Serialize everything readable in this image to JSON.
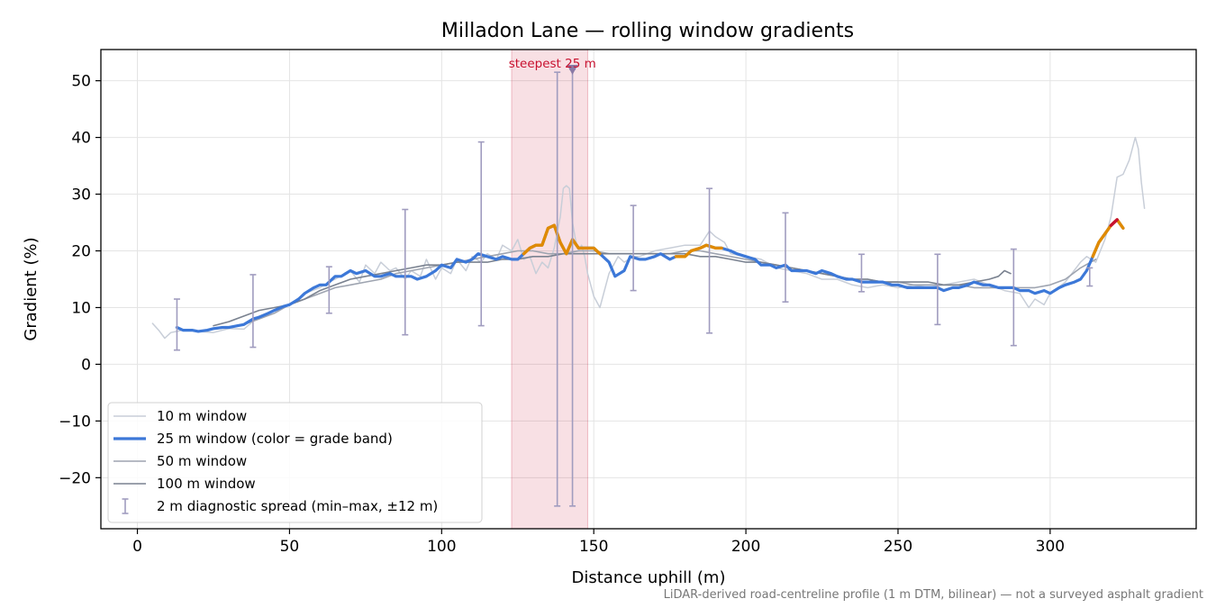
{
  "chart_data": {
    "type": "line",
    "title": "Milladon Lane — rolling window gradients",
    "xlabel": "Distance uphill (m)",
    "ylabel": "Gradient (%)",
    "xlim": [
      -12,
      348
    ],
    "ylim": [
      -29,
      55.5
    ],
    "xticks": [
      0,
      50,
      100,
      150,
      200,
      250,
      300
    ],
    "yticks": [
      -20,
      -10,
      0,
      10,
      20,
      30,
      40,
      50
    ],
    "xtick_labels": [
      "0",
      "50",
      "100",
      "150",
      "200",
      "250",
      "300"
    ],
    "ytick_labels": [
      "−20",
      "−10",
      "0",
      "10",
      "20",
      "30",
      "40",
      "50"
    ],
    "grid": true,
    "legend_position": "lower-left",
    "footnote": "LiDAR-derived road-centreline profile (1 m DTM, bilinear) — not a surveyed asphalt gradient",
    "steepest_band": {
      "x_start": 123,
      "x_end": 148,
      "marker_x": 143,
      "marker_y": 52,
      "label": "steepest 25 m"
    },
    "grade_band_colors": {
      "moderate": "#3c78d8",
      "steep": "#e08a00",
      "extreme": "#c8102e"
    },
    "legend": [
      {
        "label": "10 m window",
        "style": "thin-light"
      },
      {
        "label": "25 m window (color = grade band)",
        "style": "thick-blue"
      },
      {
        "label": "50 m window",
        "style": "medium-gray"
      },
      {
        "label": "100 m window",
        "style": "dark-gray"
      },
      {
        "label": "2 m diagnostic spread (min–max, ±12 m)",
        "style": "errorbar"
      }
    ],
    "series": [
      {
        "name": "10 m window",
        "color": "#c8ced8",
        "x": [
          5,
          7,
          9,
          11,
          13,
          16,
          20,
          25,
          30,
          35,
          40,
          45,
          50,
          55,
          60,
          63,
          65,
          68,
          70,
          73,
          75,
          78,
          80,
          83,
          85,
          88,
          90,
          93,
          95,
          98,
          100,
          103,
          105,
          108,
          110,
          113,
          115,
          118,
          120,
          123,
          125,
          127,
          129,
          131,
          133,
          135,
          137,
          139,
          140,
          141,
          142,
          143,
          144,
          145,
          146,
          147,
          148,
          150,
          152,
          155,
          158,
          160,
          163,
          165,
          170,
          175,
          180,
          185,
          188,
          190,
          193,
          195,
          200,
          205,
          210,
          215,
          220,
          225,
          230,
          235,
          240,
          245,
          250,
          255,
          260,
          265,
          270,
          275,
          280,
          285,
          290,
          293,
          295,
          298,
          300,
          305,
          310,
          312,
          315,
          318,
          320,
          322,
          324,
          326,
          328,
          329,
          330,
          331
        ],
        "y": [
          7.2,
          6,
          4.6,
          5.6,
          5.8,
          6.1,
          5.8,
          5.6,
          6.3,
          6.2,
          8.5,
          9.5,
          10.5,
          12.5,
          13.5,
          14.5,
          15,
          16,
          16.5,
          14.5,
          17.5,
          16,
          18,
          16.5,
          17,
          15,
          16.5,
          15.5,
          18.5,
          15,
          17,
          16,
          18.5,
          16.5,
          19,
          18,
          19.5,
          18.5,
          21,
          20,
          22,
          18.5,
          19,
          16,
          18,
          17,
          20.5,
          26,
          31,
          31.5,
          31,
          25,
          22,
          20,
          21,
          19,
          16,
          12,
          10,
          16,
          19,
          18,
          19,
          19,
          20,
          20.5,
          21,
          21,
          23.5,
          22.5,
          21.5,
          19.5,
          19,
          18.5,
          17,
          16.5,
          16,
          15,
          15,
          14,
          13.5,
          14,
          13.5,
          14,
          13.5,
          14,
          14.5,
          15,
          14,
          13,
          12.5,
          10,
          11.5,
          10.5,
          12.5,
          14.5,
          18,
          19,
          18,
          22,
          26,
          33,
          33.5,
          36,
          40,
          38,
          32,
          27.5
        ]
      },
      {
        "name": "25 m window (color = grade band)",
        "color": "#3c78d8",
        "x": [
          13,
          15,
          18,
          20,
          23,
          25,
          28,
          30,
          33,
          35,
          38,
          40,
          43,
          45,
          48,
          50,
          53,
          55,
          58,
          60,
          62,
          65,
          67,
          70,
          72,
          75,
          78,
          80,
          83,
          85,
          88,
          90,
          92,
          95,
          98,
          100,
          103,
          105,
          108,
          110,
          112,
          115,
          118,
          120,
          123,
          125,
          127,
          129,
          131,
          133,
          135,
          137,
          139,
          141,
          143,
          145,
          147,
          150,
          152,
          155,
          157,
          160,
          162,
          165,
          167,
          170,
          172,
          175,
          177,
          180,
          182,
          185,
          187,
          190,
          192,
          195,
          197,
          200,
          203,
          205,
          208,
          210,
          213,
          215,
          218,
          220,
          223,
          225,
          228,
          230,
          233,
          235,
          238,
          240,
          243,
          245,
          248,
          250,
          253,
          255,
          258,
          260,
          263,
          265,
          268,
          270,
          273,
          275,
          278,
          280,
          283,
          285,
          288,
          290,
          293,
          295,
          298,
          300,
          303,
          305,
          308,
          310,
          312,
          314,
          316,
          318,
          320,
          322,
          324
        ],
        "y": [
          6.5,
          6,
          6,
          5.8,
          6,
          6.3,
          6.5,
          6.5,
          6.8,
          7,
          8,
          8.3,
          9,
          9.5,
          10.2,
          10.5,
          11.5,
          12.5,
          13.5,
          14,
          14,
          15.5,
          15.5,
          16.5,
          16,
          16.5,
          15.5,
          15.5,
          16,
          15.5,
          15.5,
          15.5,
          15,
          15.5,
          16.5,
          17.5,
          17,
          18.5,
          18,
          18.5,
          19.5,
          19,
          18.5,
          19,
          18.5,
          18.5,
          19.5,
          20.5,
          21,
          21,
          24,
          24.5,
          21.5,
          19.5,
          22,
          20.5,
          20.5,
          20.5,
          19.5,
          18,
          15.5,
          16.5,
          19,
          18.5,
          18.5,
          19,
          19.5,
          18.5,
          19,
          19,
          20,
          20.5,
          21,
          20.5,
          20.5,
          20,
          19.5,
          19,
          18.5,
          17.5,
          17.5,
          17,
          17.5,
          16.5,
          16.5,
          16.5,
          16,
          16.5,
          16,
          15.5,
          15,
          15,
          14.5,
          14.5,
          14.5,
          14.5,
          14,
          14,
          13.5,
          13.5,
          13.5,
          13.5,
          13.5,
          13,
          13.5,
          13.5,
          14,
          14.5,
          14,
          14,
          13.5,
          13.5,
          13.5,
          13,
          13,
          12.5,
          13,
          12.5,
          13.5,
          14,
          14.5,
          15,
          16.5,
          19,
          21.5,
          23,
          24.5,
          25.5,
          24
        ]
      },
      {
        "name": "50 m window",
        "color": "#9ea4b0",
        "x": [
          25,
          30,
          35,
          40,
          45,
          50,
          55,
          60,
          65,
          70,
          75,
          80,
          85,
          90,
          95,
          100,
          105,
          110,
          115,
          120,
          125,
          130,
          135,
          140,
          145,
          150,
          155,
          160,
          165,
          170,
          175,
          180,
          185,
          190,
          195,
          200,
          205,
          210,
          215,
          220,
          225,
          230,
          235,
          240,
          245,
          250,
          255,
          260,
          265,
          270,
          275,
          280,
          285,
          290,
          295,
          300,
          305,
          310,
          315
        ],
        "y": [
          6.2,
          6.5,
          7,
          8,
          9,
          10.5,
          11.5,
          12.5,
          13.5,
          14,
          14.5,
          15,
          16,
          16.5,
          17,
          17.5,
          18,
          18.5,
          19,
          19.5,
          20,
          20,
          19.5,
          19.5,
          20,
          20,
          19.5,
          19.5,
          19.5,
          19.5,
          19.5,
          20,
          20,
          19.5,
          19,
          18.5,
          18,
          17.5,
          17,
          16.5,
          16,
          15.5,
          15,
          15,
          14.5,
          14.5,
          14,
          14,
          14,
          14,
          13.5,
          13.5,
          13.5,
          13.5,
          13.5,
          14,
          15,
          17,
          18.5
        ]
      },
      {
        "name": "100 m window",
        "color": "#7a8290",
        "x": [
          25,
          30,
          35,
          40,
          45,
          50,
          55,
          60,
          65,
          70,
          75,
          80,
          85,
          90,
          95,
          100,
          105,
          110,
          115,
          120,
          125,
          130,
          135,
          140,
          145,
          150,
          155,
          160,
          165,
          170,
          175,
          180,
          185,
          190,
          195,
          200,
          205,
          210,
          215,
          220,
          225,
          230,
          235,
          240,
          245,
          250,
          255,
          260,
          265,
          270,
          275,
          280,
          283,
          285,
          287
        ],
        "y": [
          6.8,
          7.5,
          8.5,
          9.5,
          10,
          10.5,
          11.5,
          13,
          14,
          15,
          15.5,
          16,
          16.5,
          17,
          17.5,
          17.5,
          18,
          18,
          18,
          18.5,
          18.5,
          19,
          19,
          19.5,
          19.5,
          19.5,
          19.5,
          19.5,
          19.5,
          19.5,
          19.5,
          19.5,
          19,
          19,
          18.5,
          18,
          18,
          17.5,
          17,
          16.5,
          16,
          15.5,
          15,
          15,
          14.5,
          14.5,
          14.5,
          14.5,
          14,
          14,
          14.5,
          15,
          15.5,
          16.5,
          16
        ]
      }
    ],
    "colored_segments": [
      {
        "band": "steep",
        "x": [
          127,
          129,
          131,
          133,
          135,
          137,
          139,
          141,
          143,
          145,
          147,
          150,
          152
        ]
      },
      {
        "band": "steep",
        "x": [
          177,
          180,
          182,
          185,
          187,
          190,
          192
        ]
      },
      {
        "band": "steep",
        "x": [
          314,
          316,
          318,
          320,
          322,
          324
        ]
      },
      {
        "band": "extreme",
        "x": [
          320,
          322
        ]
      }
    ],
    "error_bars": {
      "name": "2 m diagnostic spread (min–max, ±12 m)",
      "color": "#a09cbf",
      "x": [
        13,
        38,
        63,
        88,
        113,
        138,
        143,
        163,
        188,
        213,
        238,
        263,
        288,
        313
      ],
      "low": [
        2.5,
        3,
        9,
        5.2,
        6.8,
        -25,
        -25,
        13,
        5.5,
        11,
        12.8,
        7,
        3.3,
        13.8
      ],
      "high": [
        11.5,
        15.8,
        17.2,
        27.3,
        39.2,
        51.5,
        52,
        28,
        31,
        26.7,
        19.4,
        19.4,
        20.3,
        17
      ]
    }
  }
}
